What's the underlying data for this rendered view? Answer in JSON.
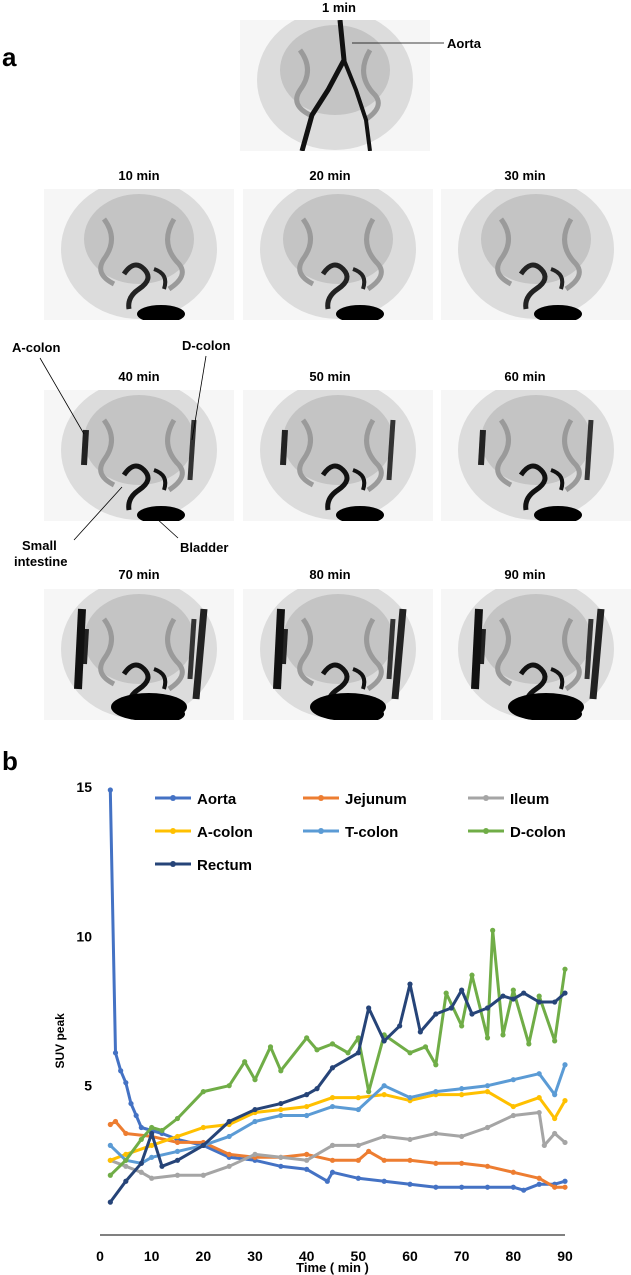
{
  "panel_a": {
    "letter": "a",
    "frames": [
      "1 min",
      "10 min",
      "20 min",
      "30 min",
      "40 min",
      "50 min",
      "60 min",
      "70 min",
      "80 min",
      "90 min"
    ],
    "annotations": {
      "aorta": "Aorta",
      "a_colon": "A-colon",
      "d_colon": "D-colon",
      "small_intestine_1": "Small",
      "small_intestine_2": "intestine",
      "bladder": "Bladder"
    }
  },
  "panel_b": {
    "letter": "b"
  },
  "colors": {
    "Aorta": "#4472C4",
    "Jejunum": "#ED7D31",
    "Ileum": "#A5A5A5",
    "A-colon": "#FFC000",
    "T-colon": "#5B9BD5",
    "D-colon": "#70AD47",
    "Rectum": "#264478"
  },
  "chart_data": {
    "type": "line",
    "xlabel": "Time ( min )",
    "ylabel": "SUV peak",
    "xlim": [
      0,
      90
    ],
    "ylim": [
      0,
      15
    ],
    "xticks": [
      0,
      10,
      20,
      30,
      40,
      50,
      60,
      70,
      80,
      90
    ],
    "yticks": [
      5,
      10,
      15
    ],
    "legend": "top",
    "grid": false,
    "series": [
      {
        "name": "Aorta",
        "x": [
          2,
          3,
          4,
          5,
          6,
          7,
          8,
          10,
          12,
          15,
          20,
          25,
          30,
          35,
          40,
          44,
          45,
          50,
          55,
          60,
          65,
          70,
          75,
          80,
          82,
          85,
          88,
          90
        ],
        "y": [
          14.9,
          6.1,
          5.5,
          5.1,
          4.4,
          4.0,
          3.6,
          3.5,
          3.4,
          3.2,
          3.0,
          2.6,
          2.5,
          2.3,
          2.2,
          1.8,
          2.1,
          1.9,
          1.8,
          1.7,
          1.6,
          1.6,
          1.6,
          1.6,
          1.5,
          1.7,
          1.7,
          1.8
        ]
      },
      {
        "name": "Jejunum",
        "x": [
          2,
          3,
          5,
          10,
          15,
          20,
          25,
          30,
          35,
          40,
          45,
          50,
          52,
          55,
          60,
          65,
          70,
          75,
          80,
          85,
          88,
          90
        ],
        "y": [
          3.7,
          3.8,
          3.4,
          3.3,
          3.1,
          3.1,
          2.7,
          2.6,
          2.6,
          2.7,
          2.5,
          2.5,
          2.8,
          2.5,
          2.5,
          2.4,
          2.4,
          2.3,
          2.1,
          1.9,
          1.6,
          1.6
        ]
      },
      {
        "name": "Ileum",
        "x": [
          2,
          5,
          8,
          10,
          15,
          20,
          25,
          30,
          35,
          40,
          45,
          50,
          55,
          60,
          65,
          70,
          75,
          80,
          85,
          86,
          88,
          90
        ],
        "y": [
          2.5,
          2.3,
          2.1,
          1.9,
          2.0,
          2.0,
          2.3,
          2.7,
          2.6,
          2.5,
          3.0,
          3.0,
          3.3,
          3.2,
          3.4,
          3.3,
          3.6,
          4.0,
          4.1,
          3.0,
          3.4,
          3.1
        ]
      },
      {
        "name": "A-colon",
        "x": [
          2,
          5,
          10,
          15,
          20,
          25,
          30,
          35,
          40,
          45,
          50,
          55,
          60,
          65,
          70,
          75,
          80,
          85,
          88,
          90
        ],
        "y": [
          2.5,
          2.7,
          3.0,
          3.3,
          3.6,
          3.7,
          4.1,
          4.2,
          4.3,
          4.6,
          4.6,
          4.7,
          4.5,
          4.7,
          4.7,
          4.8,
          4.3,
          4.6,
          3.9,
          4.5
        ]
      },
      {
        "name": "T-colon",
        "x": [
          2,
          5,
          8,
          10,
          15,
          20,
          25,
          30,
          35,
          40,
          45,
          50,
          55,
          60,
          65,
          70,
          75,
          80,
          85,
          88,
          90
        ],
        "y": [
          3.0,
          2.5,
          2.4,
          2.6,
          2.8,
          3.0,
          3.3,
          3.8,
          4.0,
          4.0,
          4.3,
          4.2,
          5.0,
          4.6,
          4.8,
          4.9,
          5.0,
          5.2,
          5.4,
          4.7,
          5.7
        ]
      },
      {
        "name": "D-colon",
        "x": [
          2,
          5,
          8,
          10,
          12,
          15,
          20,
          25,
          28,
          30,
          33,
          35,
          40,
          42,
          45,
          48,
          50,
          52,
          55,
          60,
          63,
          65,
          67,
          70,
          72,
          75,
          76,
          78,
          80,
          83,
          85,
          88,
          90
        ],
        "y": [
          2.0,
          2.5,
          3.2,
          3.6,
          3.5,
          3.9,
          4.8,
          5.0,
          5.8,
          5.2,
          6.3,
          5.5,
          6.6,
          6.2,
          6.4,
          6.1,
          6.6,
          4.8,
          6.7,
          6.1,
          6.3,
          5.7,
          8.1,
          7.0,
          8.7,
          6.6,
          10.2,
          6.7,
          8.2,
          6.4,
          8.0,
          6.5,
          8.9
        ]
      },
      {
        "name": "Rectum",
        "x": [
          2,
          5,
          8,
          10,
          12,
          15,
          20,
          25,
          30,
          35,
          40,
          42,
          45,
          50,
          52,
          55,
          58,
          60,
          62,
          65,
          68,
          70,
          72,
          75,
          78,
          80,
          82,
          85,
          88,
          90
        ],
        "y": [
          1.1,
          1.8,
          2.4,
          3.4,
          2.3,
          2.5,
          3.0,
          3.8,
          4.2,
          4.4,
          4.7,
          4.9,
          5.6,
          6.1,
          7.6,
          6.5,
          7.0,
          8.4,
          6.8,
          7.4,
          7.6,
          8.2,
          7.4,
          7.6,
          8.0,
          7.9,
          8.1,
          7.8,
          7.8,
          8.1
        ]
      }
    ]
  }
}
